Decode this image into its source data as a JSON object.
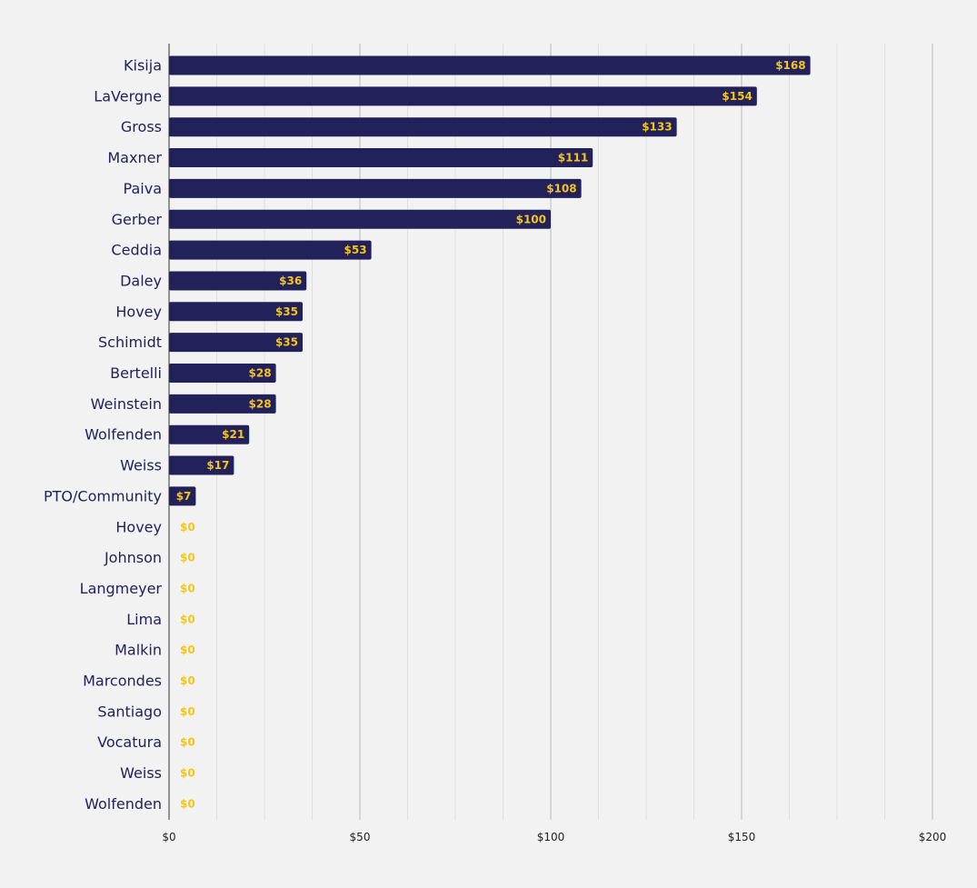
{
  "chart_data": {
    "type": "bar",
    "orientation": "horizontal",
    "categories": [
      "Kisija",
      "LaVergne",
      "Gross",
      "Maxner",
      "Paiva",
      "Gerber",
      "Ceddia",
      "Daley",
      "Hovey",
      "Schimidt",
      "Bertelli",
      "Weinstein",
      "Wolfenden",
      "Weiss",
      "PTO/Community",
      "Hovey",
      "Johnson",
      "Langmeyer",
      "Lima",
      "Malkin",
      "Marcondes",
      "Santiago",
      "Vocatura",
      "Weiss",
      "Wolfenden"
    ],
    "values": [
      168,
      154,
      133,
      111,
      108,
      100,
      53,
      36,
      35,
      35,
      28,
      28,
      21,
      17,
      7,
      0,
      0,
      0,
      0,
      0,
      0,
      0,
      0,
      0,
      0
    ],
    "value_labels": [
      "$168",
      "$154",
      "$133",
      "$111",
      "$108",
      "$100",
      "$53",
      "$36",
      "$35",
      "$35",
      "$28",
      "$28",
      "$21",
      "$17",
      "$7",
      "$0",
      "$0",
      "$0",
      "$0",
      "$0",
      "$0",
      "$0",
      "$0",
      "$0",
      "$0"
    ],
    "xticks": [
      0,
      50,
      100,
      150,
      200
    ],
    "xtick_labels": [
      "$0",
      "$50",
      "$100",
      "$150",
      "$200"
    ],
    "xlim": [
      0,
      200
    ],
    "title": "",
    "xlabel": "",
    "ylabel": "",
    "grid": true,
    "colors": {
      "bar": "#22215a",
      "value_label": "#f5c518",
      "category_label": "#22215a",
      "grid_major": "#bbbbbb",
      "grid_minor": "#dedede",
      "axis": "#333333",
      "background": "#f2f2f2"
    }
  }
}
